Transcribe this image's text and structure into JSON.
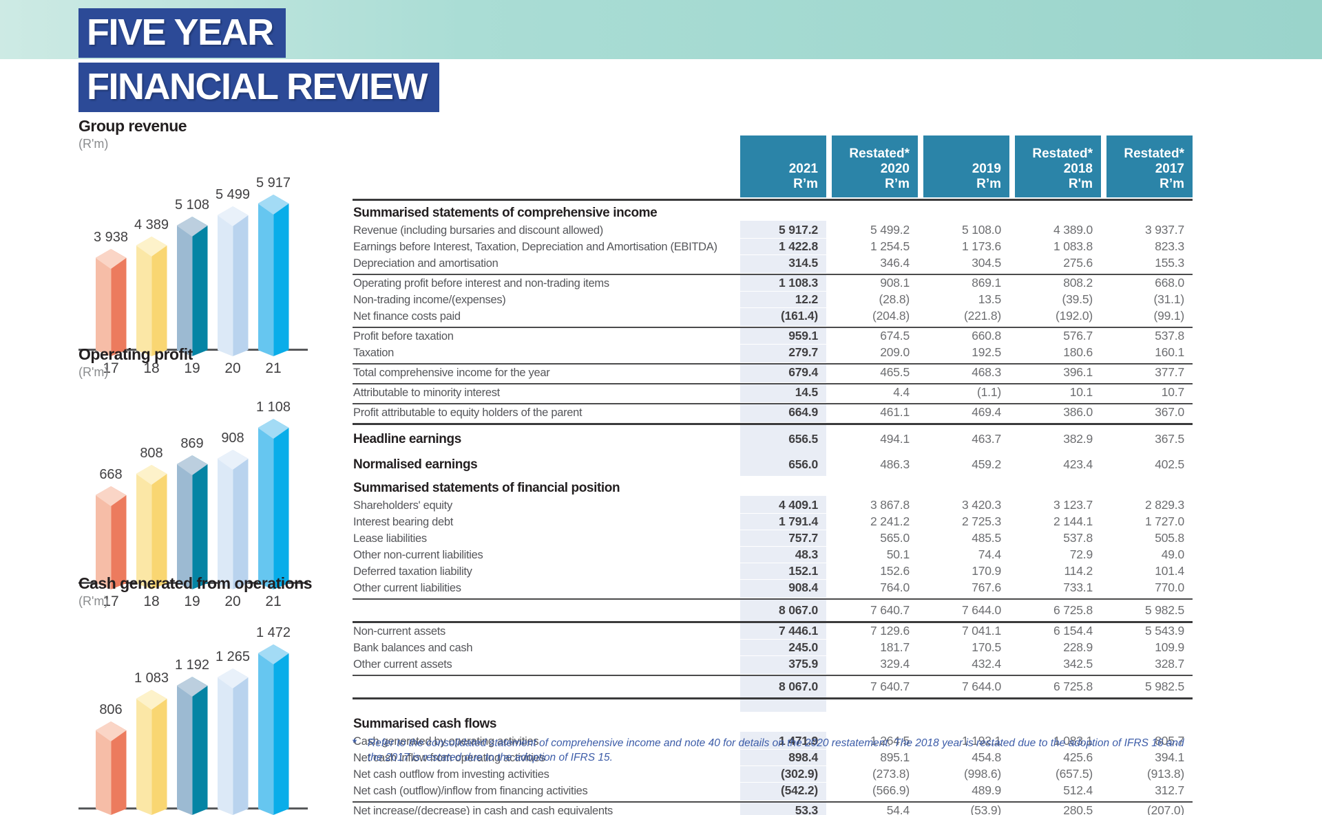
{
  "header": {
    "title_line1": "FIVE YEAR",
    "title_line2": "FINANCIAL REVIEW"
  },
  "palette": {
    "band_gradient": [
      "#cdeae4",
      "#9ad4cb"
    ],
    "title_box_bg": "#2c4a97",
    "table_header_bg": "#2b84a8",
    "col_2021_shade": "#e9edf5",
    "bars": [
      {
        "year": "17",
        "light": "#f6bda7",
        "dark": "#ec7b5e",
        "top": "#fad5c6"
      },
      {
        "year": "18",
        "light": "#fbe7a6",
        "dark": "#f9d672",
        "top": "#fdf2ca"
      },
      {
        "year": "19",
        "light": "#9cbad2",
        "dark": "#0584a4",
        "top": "#bccfdf"
      },
      {
        "year": "20",
        "light": "#dce9f7",
        "dark": "#b9d3ee",
        "top": "#e9f1fa"
      },
      {
        "year": "21",
        "light": "#66c6f0",
        "dark": "#09ade9",
        "top": "#a3dbf5"
      }
    ]
  },
  "chart_data": [
    {
      "type": "bar",
      "title": "Group revenue",
      "unit": "(R'm)",
      "categories": [
        "17",
        "18",
        "19",
        "20",
        "21"
      ],
      "values": [
        3938,
        4389,
        5108,
        5499,
        5917
      ],
      "labels": [
        "3 938",
        "4 389",
        "5 108",
        "5 499",
        "5 917"
      ],
      "ylim": [
        0,
        5917
      ]
    },
    {
      "type": "bar",
      "title": "Operating profit",
      "unit": "(R'm)",
      "categories": [
        "17",
        "18",
        "19",
        "20",
        "21"
      ],
      "values": [
        668,
        808,
        869,
        908,
        1108
      ],
      "labels": [
        "668",
        "808",
        "869",
        "908",
        "1 108"
      ],
      "ylim": [
        0,
        1108
      ]
    },
    {
      "type": "bar",
      "title": "Cash generated from operations",
      "unit": "(R'm)",
      "categories": [
        "17",
        "18",
        "19",
        "20",
        "21"
      ],
      "values": [
        806,
        1083,
        1192,
        1265,
        1472
      ],
      "labels": [
        "806",
        "1 083",
        "1 192",
        "1 265",
        "1 472"
      ],
      "ylim": [
        0,
        1472
      ]
    }
  ],
  "table": {
    "columns": [
      {
        "restated": "",
        "year": "2021",
        "unit": "R’m"
      },
      {
        "restated": "Restated*",
        "year": "2020",
        "unit": "R’m"
      },
      {
        "restated": "",
        "year": "2019",
        "unit": "R’m"
      },
      {
        "restated": "Restated*",
        "year": "2018",
        "unit": "R'm"
      },
      {
        "restated": "Restated*",
        "year": "2017",
        "unit": "R’m"
      }
    ],
    "rows": [
      {
        "style": "section",
        "label": "Summarised statements of comprehensive income",
        "values": [
          "",
          "",
          "",
          "",
          ""
        ]
      },
      {
        "style": "row",
        "label": "Revenue (including bursaries and discount allowed)",
        "values": [
          "5 917.2",
          "5 499.2",
          "5 108.0",
          "4 389.0",
          "3 937.7"
        ]
      },
      {
        "style": "row",
        "label": "Earnings before Interest, Taxation, Depreciation and Amortisation (EBITDA)",
        "values": [
          "1 422.8",
          "1 254.5",
          "1 173.6",
          "1 083.8",
          "823.3"
        ]
      },
      {
        "style": "row",
        "pad": true,
        "label": "Depreciation and amortisation",
        "values": [
          "314.5",
          "346.4",
          "304.5",
          "275.6",
          "155.3"
        ]
      },
      {
        "style": "row",
        "line": "thin",
        "label": "Operating profit before interest and non-trading items",
        "values": [
          "1 108.3",
          "908.1",
          "869.1",
          "808.2",
          "668.0"
        ]
      },
      {
        "style": "row",
        "label": "Non-trading income/(expenses)",
        "values": [
          "12.2",
          "(28.8)",
          "13.5",
          "(39.5)",
          "(31.1)"
        ]
      },
      {
        "style": "row",
        "pad": true,
        "label": "Net finance costs paid",
        "values": [
          "(161.4)",
          "(204.8)",
          "(221.8)",
          "(192.0)",
          "(99.1)"
        ]
      },
      {
        "style": "row",
        "line": "thin",
        "label": "Profit before taxation",
        "values": [
          "959.1",
          "674.5",
          "660.8",
          "576.7",
          "537.8"
        ]
      },
      {
        "style": "row",
        "pad": true,
        "label": "Taxation",
        "values": [
          "279.7",
          "209.0",
          "192.5",
          "180.6",
          "160.1"
        ]
      },
      {
        "style": "row",
        "line": "thin",
        "pad": true,
        "label": "Total comprehensive income for the year",
        "values": [
          "679.4",
          "465.5",
          "468.3",
          "396.1",
          "377.7"
        ]
      },
      {
        "style": "row",
        "line": "thin",
        "pad": true,
        "label": "Attributable to minority interest",
        "values": [
          "14.5",
          "4.4",
          "(1.1)",
          "10.1",
          "10.7"
        ]
      },
      {
        "style": "row",
        "line": "thin",
        "pad": true,
        "label": "Profit attributable to equity holders of the parent",
        "values": [
          "664.9",
          "461.1",
          "469.4",
          "386.0",
          "367.0"
        ]
      },
      {
        "style": "strong",
        "line": "thick",
        "label": "Headline earnings",
        "values": [
          "656.5",
          "494.1",
          "463.7",
          "382.9",
          "367.5"
        ]
      },
      {
        "style": "strong",
        "label": "Normalised earnings",
        "values": [
          "656.0",
          "486.3",
          "459.2",
          "423.4",
          "402.5"
        ]
      },
      {
        "style": "section",
        "label": "Summarised statements of financial position",
        "values": [
          "",
          "",
          "",
          "",
          ""
        ]
      },
      {
        "style": "row",
        "label": "Shareholders' equity",
        "values": [
          "4 409.1",
          "3 867.8",
          "3 420.3",
          "3 123.7",
          "2 829.3"
        ]
      },
      {
        "style": "row",
        "label": "Interest bearing debt",
        "values": [
          "1 791.4",
          "2 241.2",
          "2 725.3",
          "2 144.1",
          "1 727.0"
        ]
      },
      {
        "style": "row",
        "label": "Lease liabilities",
        "values": [
          "757.7",
          "565.0",
          "485.5",
          "537.8",
          "505.8"
        ]
      },
      {
        "style": "row",
        "label": "Other non-current liabilities",
        "values": [
          "48.3",
          "50.1",
          "74.4",
          "72.9",
          "49.0"
        ]
      },
      {
        "style": "row",
        "label": "Deferred taxation liability",
        "values": [
          "152.1",
          "152.6",
          "170.9",
          "114.2",
          "101.4"
        ]
      },
      {
        "style": "row",
        "pad": true,
        "label": "Other current liabilities",
        "values": [
          "908.4",
          "764.0",
          "767.6",
          "733.1",
          "770.0"
        ]
      },
      {
        "style": "total",
        "line": "thin",
        "label": "",
        "values": [
          "8 067.0",
          "7 640.7",
          "7 644.0",
          "6 725.8",
          "5 982.5"
        ]
      },
      {
        "style": "row",
        "line": "thick",
        "label": "Non-current assets",
        "values": [
          "7 446.1",
          "7 129.6",
          "7 041.1",
          "6 154.4",
          "5 543.9"
        ]
      },
      {
        "style": "row",
        "label": "Bank balances and cash",
        "values": [
          "245.0",
          "181.7",
          "170.5",
          "228.9",
          "109.9"
        ]
      },
      {
        "style": "row",
        "pad": true,
        "label": "Other current assets",
        "values": [
          "375.9",
          "329.4",
          "432.4",
          "342.5",
          "328.7"
        ]
      },
      {
        "style": "total",
        "line": "thin",
        "label": "",
        "values": [
          "8 067.0",
          "7 640.7",
          "7 644.0",
          "6 725.8",
          "5 982.5"
        ]
      },
      {
        "style": "gap",
        "line": "thick",
        "label": "",
        "values": [
          "",
          "",
          "",
          "",
          ""
        ]
      },
      {
        "style": "section",
        "label": "Summarised cash flows",
        "values": [
          "",
          "",
          "",
          "",
          ""
        ]
      },
      {
        "style": "row",
        "label": "Cash generated by operating activities",
        "values": [
          "1 471.9",
          "1 264.5",
          "1 192.1",
          "1 083.1",
          "805.7"
        ]
      },
      {
        "style": "row",
        "label": "Net cash inflow from operating activities",
        "values": [
          "898.4",
          "895.1",
          "454.8",
          "425.6",
          "394.1"
        ]
      },
      {
        "style": "row",
        "label": "Net cash outflow from investing activities",
        "values": [
          "(302.9)",
          "(273.8)",
          "(998.6)",
          "(657.5)",
          "(913.8)"
        ]
      },
      {
        "style": "row",
        "pad": true,
        "label": "Net cash (outflow)/inflow from financing activities",
        "values": [
          "(542.2)",
          "(566.9)",
          "489.9",
          "512.4",
          "312.7"
        ]
      },
      {
        "style": "row",
        "line": "thin",
        "pad": true,
        "label": "Net increase/(decrease) in cash and cash equivalents",
        "values": [
          "53.3",
          "54.4",
          "(53.9)",
          "280.5",
          "(207.0)"
        ]
      }
    ]
  },
  "footnote": {
    "marker": "*",
    "text": "Refer to the consolidated statement of comprehensive income and note 40 for details on the 2020 restatement. The 2018 year is restated due to the adoption of IFRS 16 and the 2017 is restated due to the adoption of IFRS 15."
  }
}
